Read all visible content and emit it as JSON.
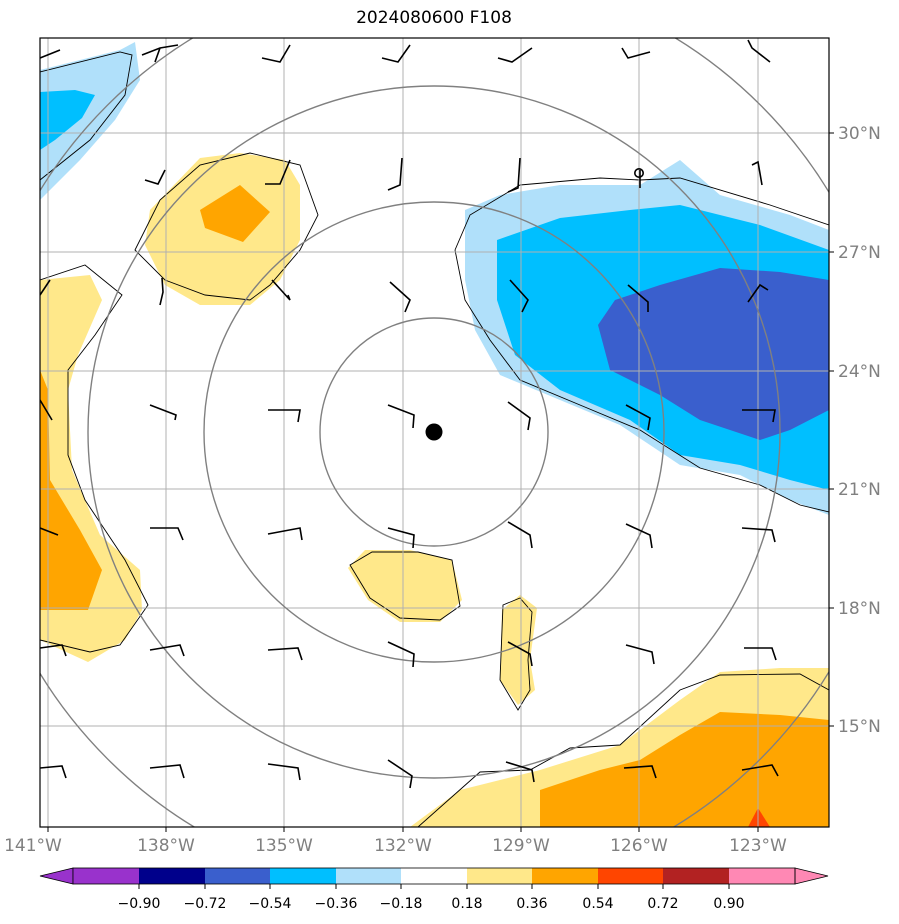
{
  "title": "2024080600 F108",
  "lat_labels": [
    "30°N",
    "27°N",
    "24°N",
    "21°N",
    "18°N",
    "15°N"
  ],
  "lon_labels": [
    "141°W",
    "138°W",
    "135°W",
    "132°W",
    "129°W",
    "126°W",
    "123°W"
  ],
  "colorbar": {
    "ticks": [
      "−0.90",
      "−0.72",
      "−0.54",
      "−0.36",
      "−0.18",
      "0.18",
      "0.36",
      "0.54",
      "0.72",
      "0.90"
    ],
    "colors": [
      "#9932cc",
      "#00008b",
      "#3a5fcd",
      "#00bfff",
      "#b0e0fa",
      "#ffffff",
      "#ffe88a",
      "#ffa500",
      "#ff4500",
      "#b22222",
      "#ff88b4"
    ]
  },
  "colors": {
    "land_outline": "#000000",
    "range_ring": "#808080",
    "gridline": "#b0b0b0"
  },
  "center_marker": "storm-center"
}
